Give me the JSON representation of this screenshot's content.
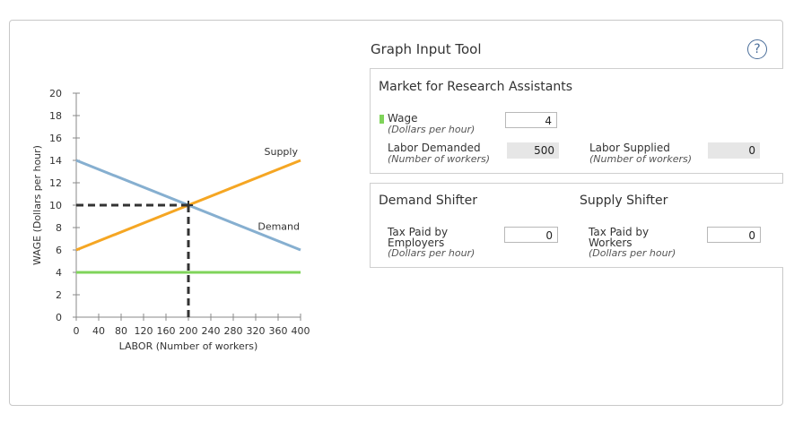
{
  "tool": {
    "title": "Graph Input Tool",
    "help_label": "?"
  },
  "market": {
    "title": "Market for Research Assistants",
    "wage_label": "Wage",
    "wage_unit": "(Dollars per hour)",
    "wage_value": "4",
    "labor_demanded_label": "Labor Demanded",
    "labor_demanded_unit": "(Number of workers)",
    "labor_demanded_value": "500",
    "labor_supplied_label": "Labor Supplied",
    "labor_supplied_unit": "(Number of workers)",
    "labor_supplied_value": "0"
  },
  "demand_shifter": {
    "title": "Demand Shifter",
    "line1": "Tax Paid by",
    "line2": "Employers",
    "unit": "(Dollars per hour)",
    "value": "0"
  },
  "supply_shifter": {
    "title": "Supply Shifter",
    "line1": "Tax Paid by",
    "line2": "Workers",
    "unit": "(Dollars per hour)",
    "value": "0"
  },
  "colors": {
    "demand": "#86afd0",
    "supply": "#f5a623",
    "wage_line": "#7fd45a",
    "equilibrium": "#333333"
  },
  "chart_data": {
    "type": "line",
    "xlabel": "LABOR (Number of workers)",
    "ylabel": "WAGE (Dollars per hour)",
    "xlim": [
      0,
      400
    ],
    "ylim": [
      0,
      20
    ],
    "x_ticks": [
      0,
      40,
      80,
      120,
      160,
      200,
      240,
      280,
      320,
      360,
      400
    ],
    "y_ticks": [
      0,
      2,
      4,
      6,
      8,
      10,
      12,
      14,
      16,
      18,
      20
    ],
    "grid": false,
    "series": [
      {
        "name": "Demand",
        "x": [
          0,
          400
        ],
        "y": [
          14,
          6
        ]
      },
      {
        "name": "Supply",
        "x": [
          0,
          400
        ],
        "y": [
          6,
          14
        ]
      },
      {
        "name": "",
        "x": [
          0,
          400
        ],
        "y": [
          4,
          4
        ]
      }
    ],
    "equilibrium": {
      "x": 200,
      "y": 10
    }
  }
}
